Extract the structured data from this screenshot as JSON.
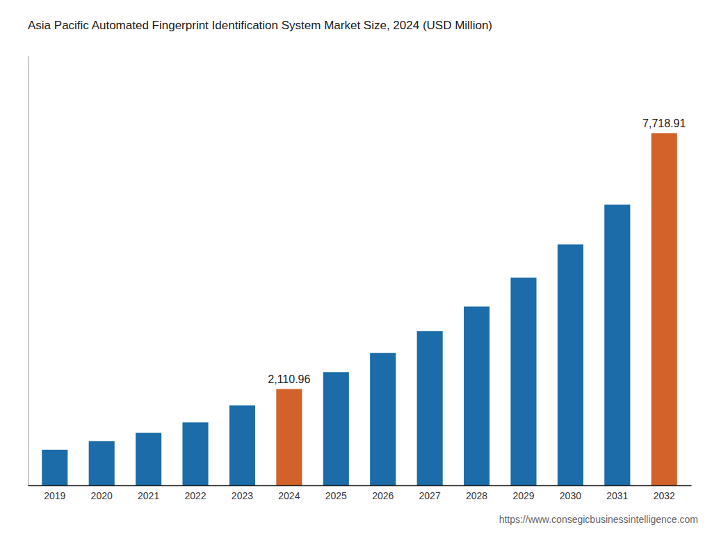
{
  "chart_data": {
    "type": "bar",
    "title": "Asia Pacific Automated Fingerprint Identification System Market Size, 2024 (USD Million)",
    "categories": [
      "2019",
      "2020",
      "2021",
      "2022",
      "2023",
      "2024",
      "2025",
      "2026",
      "2027",
      "2028",
      "2029",
      "2030",
      "2031",
      "2032"
    ],
    "values": [
      780,
      970,
      1150,
      1380,
      1750,
      2110.96,
      2480,
      2900,
      3380,
      3920,
      4550,
      5280,
      6150,
      7718.91
    ],
    "value_labels": [
      null,
      null,
      null,
      null,
      null,
      "2,110.96",
      null,
      null,
      null,
      null,
      null,
      null,
      null,
      "7,718.91"
    ],
    "colors": [
      "#1b6ca8",
      "#1b6ca8",
      "#1b6ca8",
      "#1b6ca8",
      "#1b6ca8",
      "#d2622a",
      "#1b6ca8",
      "#1b6ca8",
      "#1b6ca8",
      "#1b6ca8",
      "#1b6ca8",
      "#1b6ca8",
      "#1b6ca8",
      "#d2622a"
    ],
    "ylim": [
      0,
      9417.0702
    ],
    "data_labels": true,
    "tick_labels": "x",
    "grid": false,
    "annotations": [
      "https://www.consegicbusinessintelligence.com"
    ]
  }
}
